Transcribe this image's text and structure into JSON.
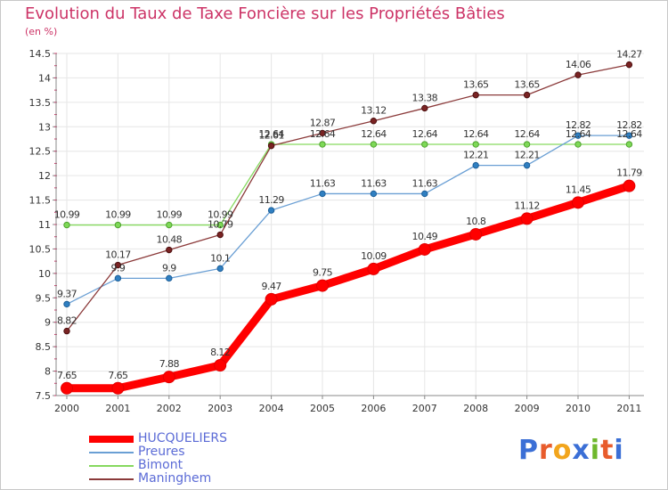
{
  "header": {
    "title": "Evolution du Taux de Taxe Foncière sur les Propriétés Bâties",
    "unit": "(en %)"
  },
  "logo": {
    "text": "Proxiti",
    "colors": [
      "#3b6fd6",
      "#e85c2c",
      "#f2a51c",
      "#3b6fd6",
      "#6fb82c",
      "#e85c2c",
      "#3b6fd6"
    ]
  },
  "chart_data": {
    "type": "line",
    "title": "Evolution du Taux de Taxe Foncière sur les Propriétés Bâties",
    "ylabel": "(en %)",
    "xlabel": "",
    "x": [
      "2000",
      "2001",
      "2002",
      "2003",
      "2004",
      "2005",
      "2006",
      "2007",
      "2008",
      "2009",
      "2010",
      "2011"
    ],
    "ylim": [
      7.5,
      14.5
    ],
    "yticks": [
      "7.5",
      "8",
      "8.5",
      "9",
      "9.5",
      "10",
      "10.5",
      "11",
      "11.5",
      "12",
      "12.5",
      "13",
      "13.5",
      "14",
      "14.5"
    ],
    "grid": true,
    "legend_position": "bottom-left",
    "series": [
      {
        "name": "HUCQUELIERS",
        "color": "#ff0000",
        "values": [
          7.65,
          7.65,
          7.88,
          8.12,
          9.47,
          9.75,
          10.09,
          10.49,
          10.8,
          11.12,
          11.45,
          11.79
        ],
        "labels": [
          "7.65",
          "7.65",
          "7.88",
          "8.12",
          "9.47",
          "9.75",
          "10.09",
          "10.49",
          "10.8",
          "11.12",
          "11.45",
          "11.79"
        ]
      },
      {
        "name": "Preures",
        "color": "#6a9fd4",
        "values": [
          9.37,
          9.9,
          9.9,
          10.1,
          11.29,
          11.63,
          11.63,
          11.63,
          12.21,
          12.21,
          12.82,
          12.82
        ],
        "labels": [
          "9.37",
          "9.9",
          "9.9",
          "10.1",
          "11.29",
          "11.63",
          "11.63",
          "11.63",
          "12.21",
          "12.21",
          "12.82",
          "12.82"
        ]
      },
      {
        "name": "Bimont",
        "color": "#86d95f",
        "values": [
          10.99,
          10.99,
          10.99,
          10.99,
          12.64,
          12.64,
          12.64,
          12.64,
          12.64,
          12.64,
          12.64,
          12.64
        ],
        "labels": [
          "10.99",
          "10.99",
          "10.99",
          "10.99",
          "12.64",
          "12.64",
          "12.64",
          "12.64",
          "12.64",
          "12.64",
          "12.64",
          "12.64"
        ]
      },
      {
        "name": "Maninghem",
        "color": "#8b3a3a",
        "values": [
          8.82,
          10.17,
          10.48,
          10.79,
          12.61,
          12.87,
          13.12,
          13.38,
          13.65,
          13.65,
          14.06,
          14.27
        ],
        "labels": [
          "8.82",
          "10.17",
          "10.48",
          "10.79",
          "12.61",
          "12.87",
          "13.12",
          "13.38",
          "13.65",
          "13.65",
          "14.06",
          "14.27"
        ]
      }
    ]
  }
}
